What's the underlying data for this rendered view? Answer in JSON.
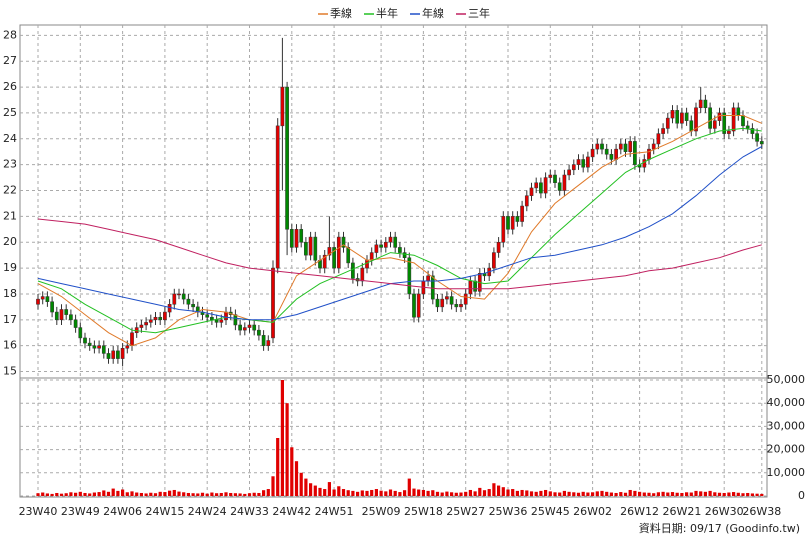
{
  "chart_data": {
    "type": "candlestick",
    "categories": [
      "23W40",
      null,
      null,
      null,
      null,
      null,
      null,
      null,
      null,
      "23W49",
      null,
      null,
      null,
      null,
      null,
      null,
      null,
      null,
      "24W06",
      null,
      null,
      null,
      null,
      null,
      null,
      null,
      null,
      "24W15",
      null,
      null,
      null,
      null,
      null,
      null,
      null,
      null,
      "24W24",
      null,
      null,
      null,
      null,
      null,
      null,
      null,
      null,
      "24W33",
      null,
      null,
      null,
      null,
      null,
      null,
      null,
      null,
      "24W42",
      null,
      null,
      null,
      null,
      null,
      null,
      null,
      null,
      "24W51",
      null,
      null,
      null,
      null,
      null,
      null,
      null,
      null,
      null,
      "25W09",
      null,
      null,
      null,
      null,
      null,
      null,
      null,
      null,
      "25W18",
      null,
      null,
      null,
      null,
      null,
      null,
      null,
      null,
      "25W27",
      null,
      null,
      null,
      null,
      null,
      null,
      null,
      null,
      "25W36",
      null,
      null,
      null,
      null,
      null,
      null,
      null,
      null,
      "25W45",
      null,
      null,
      null,
      null,
      null,
      null,
      null,
      null,
      "26W02",
      null,
      null,
      null,
      null,
      null,
      null,
      null,
      null,
      null,
      "26W12",
      null,
      null,
      null,
      null,
      null,
      null,
      null,
      null,
      "26W21",
      null,
      null,
      null,
      null,
      null,
      null,
      null,
      null,
      "26W30",
      null,
      null,
      null,
      null,
      null,
      null,
      null,
      "26W38"
    ],
    "open": [
      17.6,
      17.8,
      17.9,
      17.7,
      17.3,
      17.0,
      17.4,
      17.2,
      17.0,
      16.7,
      16.3,
      16.1,
      16.0,
      15.9,
      16.0,
      15.7,
      15.5,
      15.8,
      15.5,
      15.9,
      16.0,
      16.5,
      16.7,
      16.8,
      16.9,
      17.0,
      17.1,
      17.0,
      17.3,
      17.6,
      18.0,
      18.0,
      17.8,
      17.6,
      17.5,
      17.3,
      17.2,
      17.1,
      17.0,
      16.9,
      17.0,
      17.3,
      17.2,
      16.8,
      16.6,
      16.7,
      16.8,
      16.6,
      16.4,
      16.0,
      16.3,
      19.0,
      24.5,
      26.0,
      20.5,
      19.8,
      20.5,
      20.0,
      19.5,
      20.2,
      19.3,
      19.0,
      19.5,
      19.8,
      19.0,
      20.2,
      19.8,
      19.2,
      18.6,
      18.5,
      19.0,
      19.3,
      19.6,
      19.9,
      19.8,
      20.0,
      20.2,
      19.8,
      19.6,
      19.4,
      18.0,
      17.1,
      18.0,
      18.5,
      18.7,
      17.8,
      17.5,
      17.8,
      17.9,
      17.6,
      17.5,
      17.6,
      18.0,
      18.5,
      18.1,
      18.8,
      18.7,
      19.0,
      19.6,
      20.0,
      21.0,
      20.5,
      21.0,
      20.8,
      21.4,
      21.8,
      22.1,
      22.3,
      21.9,
      22.5,
      22.6,
      22.3,
      22.0,
      22.6,
      22.8,
      23.0,
      23.2,
      22.9,
      23.3,
      23.6,
      23.8,
      23.6,
      23.4,
      23.2,
      23.6,
      23.8,
      23.5,
      23.9,
      23.0,
      22.9,
      23.2,
      23.6,
      23.8,
      24.2,
      24.4,
      24.8,
      25.1,
      24.6,
      25.0,
      24.7,
      24.3,
      25.2,
      25.5,
      25.2,
      24.4,
      24.7,
      25.0,
      24.2,
      24.3,
      25.2,
      24.9,
      24.5,
      24.4,
      24.2,
      23.9
    ],
    "high": [
      18.0,
      18.1,
      18.1,
      17.9,
      17.5,
      17.6,
      17.6,
      17.4,
      17.2,
      16.9,
      16.5,
      16.3,
      16.2,
      16.2,
      16.2,
      15.9,
      16.0,
      16.0,
      16.1,
      16.2,
      16.7,
      16.9,
      17.0,
      17.1,
      17.2,
      17.3,
      17.3,
      17.5,
      17.8,
      18.2,
      18.2,
      18.2,
      18.0,
      17.8,
      17.7,
      17.5,
      17.4,
      17.3,
      17.2,
      17.2,
      17.5,
      17.5,
      17.4,
      17.0,
      16.9,
      17.0,
      17.0,
      16.8,
      16.6,
      16.4,
      19.3,
      24.8,
      27.9,
      26.2,
      20.7,
      20.7,
      20.7,
      20.2,
      20.4,
      20.4,
      19.5,
      19.7,
      21.0,
      20.0,
      20.4,
      20.4,
      20.0,
      19.4,
      18.8,
      19.2,
      19.5,
      19.8,
      20.1,
      20.1,
      20.2,
      20.4,
      20.4,
      20.0,
      19.8,
      19.6,
      18.2,
      18.2,
      18.7,
      18.9,
      18.9,
      18.0,
      18.0,
      18.1,
      18.1,
      17.8,
      17.8,
      18.2,
      18.7,
      18.7,
      19.0,
      19.0,
      19.2,
      19.8,
      20.2,
      21.2,
      21.2,
      21.2,
      21.2,
      21.6,
      22.0,
      22.3,
      22.5,
      22.5,
      22.7,
      22.8,
      22.8,
      22.5,
      22.8,
      23.0,
      23.2,
      23.4,
      23.4,
      23.5,
      23.8,
      24.0,
      24.0,
      23.8,
      23.6,
      23.8,
      24.0,
      24.0,
      24.1,
      24.1,
      23.2,
      23.4,
      23.8,
      24.0,
      24.4,
      24.6,
      25.0,
      25.3,
      25.3,
      25.2,
      25.2,
      24.9,
      25.4,
      26.0,
      25.7,
      25.4,
      24.9,
      25.2,
      25.2,
      24.5,
      25.4,
      25.4,
      25.1,
      24.7,
      24.6,
      24.4,
      24.1
    ],
    "low": [
      17.4,
      17.6,
      17.5,
      17.1,
      16.8,
      16.8,
      17.0,
      16.8,
      16.5,
      16.1,
      15.9,
      15.8,
      15.7,
      15.7,
      15.5,
      15.3,
      15.3,
      15.3,
      15.2,
      15.7,
      15.8,
      16.3,
      16.5,
      16.6,
      16.7,
      16.8,
      16.8,
      16.8,
      17.1,
      17.4,
      17.8,
      17.6,
      17.4,
      17.3,
      17.1,
      17.0,
      16.9,
      16.8,
      16.7,
      16.7,
      16.8,
      17.0,
      16.6,
      16.4,
      16.4,
      16.5,
      16.4,
      16.2,
      15.8,
      15.8,
      16.1,
      18.8,
      22.0,
      19.5,
      19.6,
      19.6,
      19.8,
      19.3,
      19.3,
      19.1,
      18.8,
      18.8,
      19.3,
      18.8,
      18.8,
      19.6,
      19.0,
      18.4,
      18.3,
      18.3,
      18.8,
      19.1,
      19.4,
      19.6,
      19.6,
      19.8,
      19.6,
      19.4,
      19.2,
      17.8,
      16.9,
      16.9,
      17.8,
      18.3,
      17.6,
      17.3,
      17.3,
      17.6,
      17.4,
      17.3,
      17.3,
      17.4,
      17.8,
      17.9,
      17.9,
      18.5,
      18.5,
      18.8,
      19.4,
      19.8,
      20.3,
      20.3,
      20.6,
      20.6,
      21.2,
      21.6,
      21.9,
      21.7,
      21.7,
      22.3,
      22.1,
      21.8,
      21.8,
      22.4,
      22.6,
      22.8,
      22.7,
      22.7,
      23.1,
      23.4,
      23.4,
      23.2,
      23.0,
      23.0,
      23.4,
      23.3,
      23.3,
      22.8,
      22.7,
      22.7,
      23.0,
      23.4,
      23.6,
      24.0,
      24.2,
      24.6,
      24.4,
      24.4,
      24.5,
      24.1,
      24.1,
      25.0,
      25.0,
      24.2,
      24.2,
      24.5,
      24.0,
      24.0,
      24.1,
      24.7,
      24.3,
      24.2,
      24.0,
      23.7,
      23.6
    ],
    "close": [
      17.8,
      17.9,
      17.7,
      17.3,
      17.0,
      17.4,
      17.2,
      17.0,
      16.7,
      16.3,
      16.1,
      16.0,
      15.9,
      16.0,
      15.7,
      15.5,
      15.8,
      15.5,
      15.9,
      16.0,
      16.5,
      16.7,
      16.8,
      16.9,
      17.0,
      17.1,
      17.0,
      17.3,
      17.6,
      18.0,
      18.0,
      17.8,
      17.6,
      17.5,
      17.3,
      17.2,
      17.1,
      17.0,
      16.9,
      17.0,
      17.3,
      17.2,
      16.8,
      16.6,
      16.7,
      16.8,
      16.6,
      16.4,
      16.0,
      16.2,
      19.0,
      24.5,
      26.0,
      20.5,
      19.8,
      20.5,
      20.0,
      19.5,
      20.2,
      19.3,
      19.0,
      19.5,
      19.8,
      19.0,
      20.2,
      19.8,
      19.2,
      18.6,
      18.5,
      19.0,
      19.3,
      19.6,
      19.9,
      19.8,
      20.0,
      20.2,
      19.8,
      19.6,
      19.4,
      18.0,
      17.1,
      18.0,
      18.5,
      18.7,
      17.8,
      17.5,
      17.8,
      17.9,
      17.6,
      17.5,
      17.6,
      18.0,
      18.5,
      18.1,
      18.8,
      18.7,
      19.0,
      19.6,
      20.0,
      21.0,
      20.5,
      21.0,
      20.8,
      21.4,
      21.8,
      22.1,
      22.3,
      21.9,
      22.5,
      22.6,
      22.3,
      22.0,
      22.6,
      22.8,
      23.0,
      23.2,
      22.9,
      23.3,
      23.6,
      23.8,
      23.6,
      23.4,
      23.2,
      23.6,
      23.8,
      23.5,
      23.9,
      23.0,
      22.9,
      23.2,
      23.6,
      23.8,
      24.2,
      24.4,
      24.8,
      25.1,
      24.6,
      25.0,
      24.7,
      24.3,
      25.2,
      25.5,
      25.2,
      24.4,
      24.7,
      25.0,
      24.2,
      24.3,
      25.2,
      24.9,
      24.5,
      24.4,
      24.2,
      23.9,
      23.8
    ],
    "up_color": "#e00000",
    "down_color": "#008800",
    "ylim": [
      14.75,
      28.4
    ],
    "yticks": [
      15,
      16,
      17,
      18,
      19,
      20,
      21,
      22,
      23,
      24,
      25,
      26,
      27,
      28
    ],
    "grid": true,
    "series": [
      {
        "name": "季線",
        "color": "#e07a2a",
        "x": [
          0,
          5,
          10,
          15,
          20,
          25,
          30,
          35,
          40,
          45,
          50,
          55,
          60,
          65,
          70,
          75,
          80,
          85,
          90,
          95,
          100,
          105,
          110,
          115,
          120,
          125,
          130,
          135,
          140,
          145,
          150,
          154
        ],
        "values": [
          18.4,
          17.9,
          17.2,
          16.5,
          16.0,
          16.3,
          17.0,
          17.4,
          17.3,
          17.0,
          16.9,
          18.7,
          19.3,
          19.9,
          19.3,
          19.4,
          19.2,
          18.5,
          17.9,
          17.8,
          18.8,
          20.4,
          21.5,
          22.2,
          22.9,
          23.4,
          23.5,
          23.9,
          24.4,
          24.9,
          24.9,
          24.6
        ]
      },
      {
        "name": "半年",
        "color": "#22c022",
        "x": [
          0,
          5,
          10,
          15,
          20,
          25,
          30,
          35,
          40,
          45,
          50,
          55,
          60,
          65,
          70,
          75,
          80,
          85,
          90,
          95,
          100,
          105,
          110,
          115,
          120,
          125,
          130,
          135,
          140,
          145,
          150,
          154
        ],
        "values": [
          18.5,
          18.2,
          17.6,
          17.1,
          16.6,
          16.5,
          16.7,
          16.9,
          17.1,
          17.0,
          16.9,
          17.8,
          18.4,
          18.8,
          19.2,
          19.6,
          19.5,
          19.1,
          18.6,
          18.4,
          18.5,
          19.4,
          20.3,
          21.1,
          21.9,
          22.7,
          23.2,
          23.6,
          24.0,
          24.3,
          24.4,
          24.3
        ]
      },
      {
        "name": "年線",
        "color": "#2050c8",
        "x": [
          0,
          5,
          10,
          15,
          20,
          25,
          30,
          35,
          40,
          45,
          50,
          55,
          60,
          65,
          70,
          75,
          80,
          85,
          90,
          95,
          100,
          105,
          110,
          115,
          120,
          125,
          130,
          135,
          140,
          145,
          150,
          154
        ],
        "values": [
          18.6,
          18.4,
          18.2,
          18.0,
          17.8,
          17.6,
          17.4,
          17.3,
          17.1,
          17.0,
          17.0,
          17.2,
          17.5,
          17.8,
          18.1,
          18.4,
          18.5,
          18.5,
          18.6,
          18.8,
          19.1,
          19.4,
          19.5,
          19.7,
          19.9,
          20.2,
          20.6,
          21.1,
          21.8,
          22.6,
          23.3,
          23.7
        ]
      },
      {
        "name": "三年",
        "color": "#c02060",
        "x": [
          0,
          5,
          10,
          15,
          20,
          25,
          30,
          35,
          40,
          45,
          50,
          55,
          60,
          65,
          70,
          75,
          80,
          85,
          90,
          95,
          100,
          105,
          110,
          115,
          120,
          125,
          130,
          135,
          140,
          145,
          150,
          154
        ],
        "values": [
          20.9,
          20.8,
          20.7,
          20.5,
          20.3,
          20.1,
          19.8,
          19.5,
          19.2,
          19.0,
          18.9,
          18.8,
          18.7,
          18.6,
          18.5,
          18.4,
          18.3,
          18.2,
          18.2,
          18.2,
          18.2,
          18.3,
          18.4,
          18.5,
          18.6,
          18.7,
          18.9,
          19.0,
          19.2,
          19.4,
          19.7,
          19.9
        ]
      }
    ],
    "volume": {
      "color": "#e00000",
      "values": [
        1200,
        1500,
        1100,
        900,
        1300,
        1000,
        1200,
        1600,
        1400,
        1800,
        1300,
        1100,
        1500,
        1700,
        2400,
        1800,
        3200,
        2200,
        2800,
        1600,
        2000,
        1500,
        1300,
        1100,
        1400,
        1200,
        1800,
        1700,
        2300,
        2600,
        1900,
        1600,
        1300,
        1200,
        1100,
        1400,
        1000,
        1500,
        1200,
        1300,
        1600,
        1300,
        1200,
        1100,
        900,
        1200,
        1400,
        1300,
        2500,
        3000,
        8500,
        25000,
        50000,
        40000,
        21000,
        15000,
        10000,
        7500,
        5500,
        4500,
        3500,
        3000,
        6000,
        2800,
        4200,
        3000,
        2500,
        2200,
        1800,
        2400,
        2200,
        2600,
        3000,
        2300,
        2000,
        2800,
        2200,
        1700,
        2500,
        7500,
        3200,
        2800,
        2600,
        2200,
        2500,
        1800,
        1500,
        1900,
        1600,
        1400,
        1500,
        1800,
        2600,
        2000,
        3500,
        2500,
        3000,
        5500,
        4500,
        3800,
        2800,
        3000,
        2200,
        2600,
        2400,
        2000,
        1800,
        2200,
        2600,
        2000,
        1600,
        1500,
        2200,
        1800,
        1600,
        1400,
        1800,
        1500,
        1600,
        2000,
        2200,
        1800,
        1500,
        1300,
        1700,
        1400,
        2600,
        2200,
        1800,
        1500,
        1400,
        1200,
        1600,
        1800,
        1500,
        1700,
        1400,
        1300,
        1600,
        1500,
        2200,
        2000,
        1800,
        2200,
        1600,
        1400,
        1300,
        1500,
        1700,
        1400,
        1200,
        1300,
        1100,
        1000,
        900
      ],
      "ylim": [
        0,
        50000
      ],
      "yticks": [
        0,
        {
          "value": 10000,
          "label": "10,000"
        },
        {
          "value": 20000,
          "label": "20,000"
        },
        {
          "value": 30000,
          "label": "30,000"
        },
        {
          "value": 40000,
          "label": "40,000"
        },
        {
          "value": 50000,
          "label": "50,000"
        }
      ]
    },
    "footer": "資料日期: 09/17 (Goodinfo.tw)"
  }
}
